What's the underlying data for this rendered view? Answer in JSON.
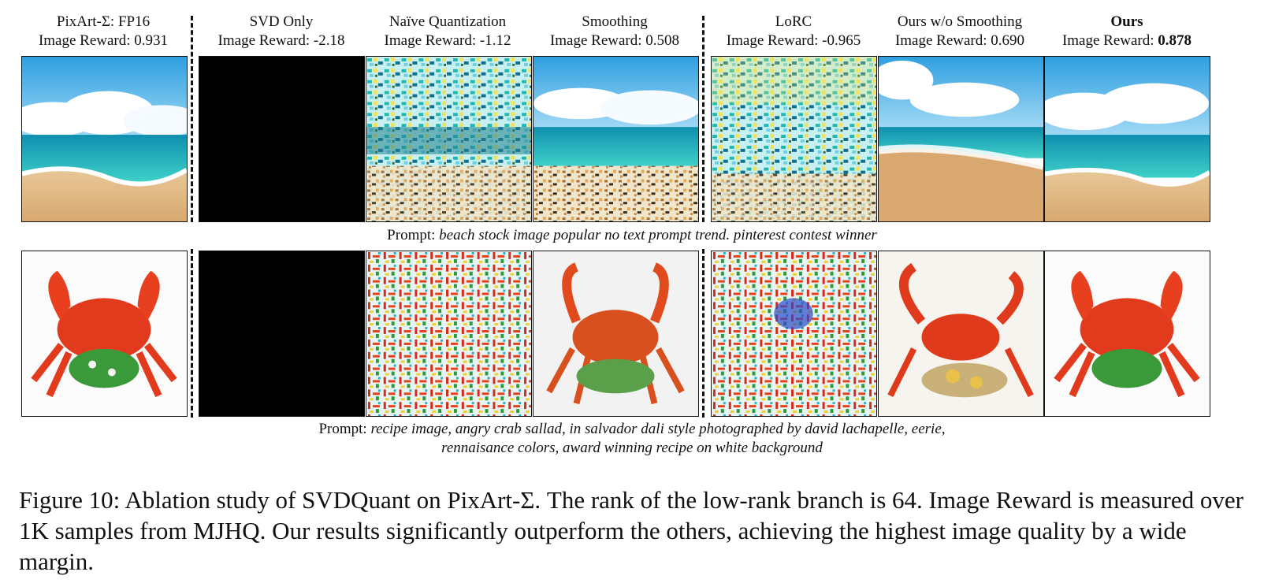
{
  "columns": [
    {
      "name": "PixArt-Σ: FP16",
      "reward_label": "Image Reward:",
      "reward": "0.931"
    },
    {
      "name": "SVD Only",
      "reward_label": "Image Reward:",
      "reward": "-2.18"
    },
    {
      "name": "Naïve Quantization",
      "reward_label": "Image Reward:",
      "reward": "-1.12"
    },
    {
      "name": "Smoothing",
      "reward_label": "Image Reward:",
      "reward": "0.508"
    },
    {
      "name": "LoRC",
      "reward_label": "Image Reward:",
      "reward": "-0.965"
    },
    {
      "name": "Ours w/o Smoothing",
      "reward_label": "Image Reward:",
      "reward": "0.690"
    },
    {
      "name": "Ours",
      "reward_label": "Image Reward:",
      "reward": "0.878"
    }
  ],
  "prompts": {
    "beach": {
      "label": "Prompt:",
      "text": "beach stock image popular no text prompt trend. pinterest contest winner"
    },
    "crab": {
      "label": "Prompt:",
      "text_line1": "recipe image, angry crab sallad, in salvador dali style photographed by david lachapelle, eerie,",
      "text_line2": "rennaisance colors, award winning recipe on white background"
    }
  },
  "caption": "Figure 10: Ablation study of SVDQuant on PixArt-Σ. The rank of the low-rank branch is 64. Image Reward is measured over 1K samples from MJHQ. Our results significantly outperform the others, achieving the highest image quality by a wide margin."
}
